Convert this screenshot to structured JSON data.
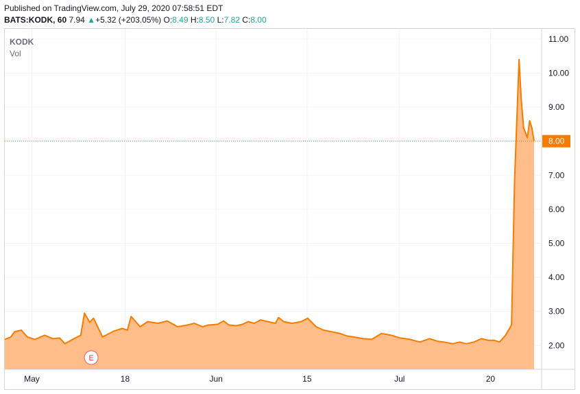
{
  "header": {
    "published": "Published on TradingView.com, July 29, 2020 07:58:51 EDT",
    "symbol": "BATS:KODK, 60",
    "last": "7.94",
    "change_arrow": "▲",
    "change": "+5.32 (+203.05%)",
    "o_label": "O:",
    "o_value": "8.49",
    "h_label": "H:",
    "h_value": "8.50",
    "l_label": "L:",
    "l_value": "7.82",
    "c_label": "C:",
    "c_value": "8.00"
  },
  "legend": {
    "ticker": "KODK",
    "volume": "Vol"
  },
  "earnings_marker": "E",
  "colors": {
    "line": "#f57c00",
    "fill": "#ffbd8a",
    "price_label_bg": "#f57c00",
    "grid": "#f0f3fa",
    "axis_border": "#cfd3da"
  },
  "chart_data": {
    "type": "area",
    "title": "",
    "xlabel": "",
    "ylabel": "",
    "ylim": [
      1.3,
      11.3
    ],
    "yticks": [
      "11.00",
      "10.00",
      "9.00",
      "8.00",
      "7.00",
      "6.00",
      "5.00",
      "4.00",
      "3.00",
      "2.00"
    ],
    "ytick_values": [
      11,
      10,
      9,
      8,
      7,
      6,
      5,
      4,
      3,
      2
    ],
    "xticks": [
      {
        "label": "May",
        "x": 0.8
      },
      {
        "label": "18",
        "x": 13.2
      },
      {
        "label": "Jun",
        "x": 25.3
      },
      {
        "label": "15",
        "x": 37.4
      },
      {
        "label": "Jul",
        "x": 49.7
      },
      {
        "label": "20",
        "x": 61.8
      }
    ],
    "xlim": [
      -2.8,
      68.6
    ],
    "last_price": 8.0,
    "last_price_label": "8.00",
    "earnings_x": 8.7,
    "grid": true,
    "series": [
      {
        "x": [
          -2.8,
          -2.0,
          -1.5,
          -0.6,
          0.2,
          1.2,
          2.5,
          3.6,
          4.5,
          5.2,
          6.4,
          7.3,
          7.8,
          8.5,
          9.0,
          10.2,
          11.7,
          12.8,
          13.5,
          14.0,
          15.2,
          16.2,
          17.6,
          18.8,
          20.2,
          21.5,
          22.4,
          23.5,
          24.3,
          25.5,
          26.3,
          27.0,
          28.0,
          28.8,
          29.6,
          30.4,
          31.2,
          32.2,
          33.2,
          33.6,
          34.3,
          35.4,
          36.6,
          37.5,
          38.6,
          39.6,
          40.7,
          41.8,
          42.7,
          43.6,
          44.9,
          46.0,
          47.3,
          48.6,
          49.8,
          51.1,
          52.4,
          53.7,
          54.8,
          55.6,
          56.8,
          57.7,
          58.6,
          59.6,
          60.6,
          61.5,
          62.3,
          63.0,
          63.8,
          64.6,
          65.0,
          65.6,
          65.9,
          66.2,
          66.7,
          67.0,
          67.3,
          67.6
        ],
        "y": [
          2.18,
          2.25,
          2.4,
          2.45,
          2.25,
          2.18,
          2.3,
          2.2,
          2.22,
          2.05,
          2.2,
          2.3,
          2.95,
          2.68,
          2.8,
          2.25,
          2.42,
          2.5,
          2.45,
          2.85,
          2.55,
          2.7,
          2.65,
          2.72,
          2.55,
          2.6,
          2.65,
          2.55,
          2.6,
          2.62,
          2.72,
          2.6,
          2.58,
          2.62,
          2.7,
          2.65,
          2.75,
          2.7,
          2.65,
          2.82,
          2.7,
          2.65,
          2.7,
          2.8,
          2.55,
          2.45,
          2.4,
          2.35,
          2.28,
          2.25,
          2.2,
          2.18,
          2.35,
          2.3,
          2.22,
          2.18,
          2.1,
          2.2,
          2.12,
          2.1,
          2.05,
          2.1,
          2.05,
          2.1,
          2.2,
          2.15,
          2.15,
          2.1,
          2.3,
          2.6,
          6.8,
          10.4,
          9.2,
          8.4,
          8.1,
          8.6,
          8.4,
          8.0
        ]
      }
    ]
  }
}
